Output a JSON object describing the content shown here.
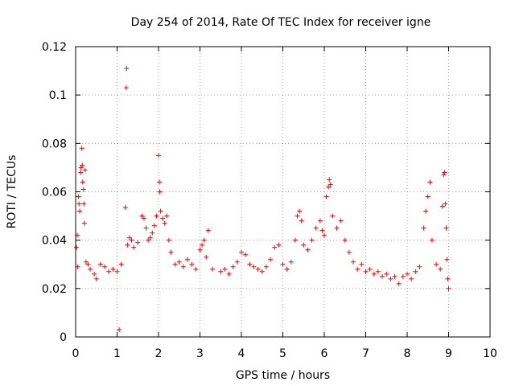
{
  "chart_data": {
    "type": "scatter",
    "title": "Day 254 of 2014, Rate Of TEC Index for receiver igne",
    "xlabel": "GPS time / hours",
    "ylabel": "ROTI / TECUs",
    "xlim": [
      0,
      10
    ],
    "ylim": [
      0,
      0.12
    ],
    "xticks": [
      0,
      1,
      2,
      3,
      4,
      5,
      6,
      7,
      8,
      9,
      10
    ],
    "xtick_labels": [
      "0",
      "1",
      "2",
      "3",
      "4",
      "5",
      "6",
      "7",
      "8",
      "9",
      "10"
    ],
    "yticks": [
      0,
      0.02,
      0.04,
      0.06,
      0.08,
      0.1,
      0.12
    ],
    "ytick_labels": [
      "0",
      "0.02",
      "0.04",
      "0.06",
      "0.08",
      "0.1",
      "0.12"
    ],
    "grid": true,
    "marker": "+",
    "color": "#ff0000",
    "data_extent_hours": [
      0,
      9.0
    ],
    "series": [
      {
        "name": "ROTI",
        "points": [
          [
            0.02,
            0.037
          ],
          [
            0.04,
            0.042
          ],
          [
            0.05,
            0.029
          ],
          [
            0.07,
            0.058
          ],
          [
            0.08,
            0.055
          ],
          [
            0.1,
            0.052
          ],
          [
            0.12,
            0.068
          ],
          [
            0.13,
            0.07
          ],
          [
            0.15,
            0.078
          ],
          [
            0.16,
            0.071
          ],
          [
            0.17,
            0.064
          ],
          [
            0.19,
            0.061
          ],
          [
            0.2,
            0.055
          ],
          [
            0.21,
            0.047
          ],
          [
            0.23,
            0.069
          ],
          [
            0.25,
            0.031
          ],
          [
            0.3,
            0.03
          ],
          [
            0.35,
            0.028
          ],
          [
            0.45,
            0.026
          ],
          [
            0.5,
            0.024
          ],
          [
            0.6,
            0.03
          ],
          [
            0.7,
            0.029
          ],
          [
            0.8,
            0.027
          ],
          [
            0.9,
            0.028
          ],
          [
            1.0,
            0.027
          ],
          [
            1.05,
            0.003
          ],
          [
            1.1,
            0.03
          ],
          [
            1.2,
            0.0535
          ],
          [
            1.22,
            0.103
          ],
          [
            1.23,
            0.111
          ],
          [
            1.25,
            0.038
          ],
          [
            1.3,
            0.041
          ],
          [
            1.35,
            0.04
          ],
          [
            1.4,
            0.037
          ],
          [
            1.5,
            0.039
          ],
          [
            1.6,
            0.05
          ],
          [
            1.65,
            0.049
          ],
          [
            1.7,
            0.045
          ],
          [
            1.75,
            0.04
          ],
          [
            1.8,
            0.041
          ],
          [
            1.85,
            0.043
          ],
          [
            1.9,
            0.046
          ],
          [
            1.95,
            0.05
          ],
          [
            2.0,
            0.075
          ],
          [
            2.02,
            0.064
          ],
          [
            2.03,
            0.06
          ],
          [
            2.05,
            0.052
          ],
          [
            2.1,
            0.049
          ],
          [
            2.15,
            0.047
          ],
          [
            2.2,
            0.05
          ],
          [
            2.25,
            0.04
          ],
          [
            2.3,
            0.035
          ],
          [
            2.4,
            0.03
          ],
          [
            2.5,
            0.031
          ],
          [
            2.6,
            0.029
          ],
          [
            2.7,
            0.032
          ],
          [
            2.8,
            0.03
          ],
          [
            2.9,
            0.028
          ],
          [
            3.0,
            0.036
          ],
          [
            3.05,
            0.038
          ],
          [
            3.1,
            0.04
          ],
          [
            3.15,
            0.033
          ],
          [
            3.2,
            0.044
          ],
          [
            3.3,
            0.028
          ],
          [
            3.5,
            0.027
          ],
          [
            3.6,
            0.028
          ],
          [
            3.7,
            0.026
          ],
          [
            3.8,
            0.029
          ],
          [
            3.9,
            0.031
          ],
          [
            4.0,
            0.035
          ],
          [
            4.1,
            0.034
          ],
          [
            4.2,
            0.03
          ],
          [
            4.3,
            0.029
          ],
          [
            4.4,
            0.028
          ],
          [
            4.5,
            0.027
          ],
          [
            4.6,
            0.029
          ],
          [
            4.7,
            0.032
          ],
          [
            4.8,
            0.037
          ],
          [
            4.9,
            0.038
          ],
          [
            5.0,
            0.03
          ],
          [
            5.1,
            0.028
          ],
          [
            5.2,
            0.031
          ],
          [
            5.3,
            0.04
          ],
          [
            5.35,
            0.05
          ],
          [
            5.4,
            0.052
          ],
          [
            5.45,
            0.048
          ],
          [
            5.5,
            0.038
          ],
          [
            5.6,
            0.036
          ],
          [
            5.7,
            0.04
          ],
          [
            5.8,
            0.045
          ],
          [
            5.9,
            0.048
          ],
          [
            5.95,
            0.044
          ],
          [
            6.0,
            0.042
          ],
          [
            6.05,
            0.058
          ],
          [
            6.1,
            0.062
          ],
          [
            6.12,
            0.065
          ],
          [
            6.15,
            0.063
          ],
          [
            6.2,
            0.05
          ],
          [
            6.3,
            0.045
          ],
          [
            6.4,
            0.048
          ],
          [
            6.5,
            0.04
          ],
          [
            6.6,
            0.035
          ],
          [
            6.7,
            0.031
          ],
          [
            6.8,
            0.028
          ],
          [
            6.9,
            0.03
          ],
          [
            7.0,
            0.027
          ],
          [
            7.1,
            0.028
          ],
          [
            7.2,
            0.026
          ],
          [
            7.3,
            0.027
          ],
          [
            7.4,
            0.025
          ],
          [
            7.5,
            0.026
          ],
          [
            7.6,
            0.024
          ],
          [
            7.7,
            0.025
          ],
          [
            7.8,
            0.022
          ],
          [
            7.9,
            0.025
          ],
          [
            8.0,
            0.026
          ],
          [
            8.1,
            0.024
          ],
          [
            8.2,
            0.027
          ],
          [
            8.3,
            0.029
          ],
          [
            8.4,
            0.045
          ],
          [
            8.45,
            0.052
          ],
          [
            8.5,
            0.058
          ],
          [
            8.55,
            0.064
          ],
          [
            8.6,
            0.04
          ],
          [
            8.7,
            0.03
          ],
          [
            8.8,
            0.028
          ],
          [
            8.85,
            0.054
          ],
          [
            8.88,
            0.067
          ],
          [
            8.9,
            0.068
          ],
          [
            8.92,
            0.055
          ],
          [
            8.94,
            0.045
          ],
          [
            8.96,
            0.032
          ],
          [
            8.98,
            0.024
          ],
          [
            9.0,
            0.02
          ]
        ]
      }
    ]
  }
}
